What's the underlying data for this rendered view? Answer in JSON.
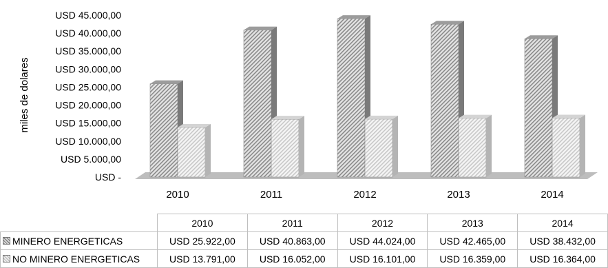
{
  "chart_data": {
    "type": "bar",
    "ylabel": "miles de dolares",
    "ylim": [
      0,
      45000
    ],
    "yticks": [
      {
        "value": 0,
        "label": "USD -"
      },
      {
        "value": 5000,
        "label": "USD 5.000,00"
      },
      {
        "value": 10000,
        "label": "USD 10.000,00"
      },
      {
        "value": 15000,
        "label": "USD 15.000,00"
      },
      {
        "value": 20000,
        "label": "USD 20.000,00"
      },
      {
        "value": 25000,
        "label": "USD 25.000,00"
      },
      {
        "value": 30000,
        "label": "USD 30.000,00"
      },
      {
        "value": 35000,
        "label": "USD 35.000,00"
      },
      {
        "value": 40000,
        "label": "USD 40.000,00"
      },
      {
        "value": 45000,
        "label": "USD 45.000,00"
      }
    ],
    "categories": [
      "2010",
      "2011",
      "2012",
      "2013",
      "2014"
    ],
    "series": [
      {
        "name": "MINERO ENERGETICAS",
        "values": [
          25922,
          40863,
          44024,
          42465,
          38432
        ],
        "labels": [
          "USD 25.922,00",
          "USD 40.863,00",
          "USD 44.024,00",
          "USD 42.465,00",
          "USD 38.432,00"
        ]
      },
      {
        "name": "NO MINERO ENERGETICAS",
        "values": [
          13791,
          16052,
          16101,
          16359,
          16364
        ],
        "labels": [
          "USD 13.791,00",
          "USD 16.052,00",
          "USD 16.101,00",
          "USD 16.359,00",
          "USD 16.364,00"
        ]
      }
    ],
    "grid": false,
    "legend": "data-table-below"
  }
}
